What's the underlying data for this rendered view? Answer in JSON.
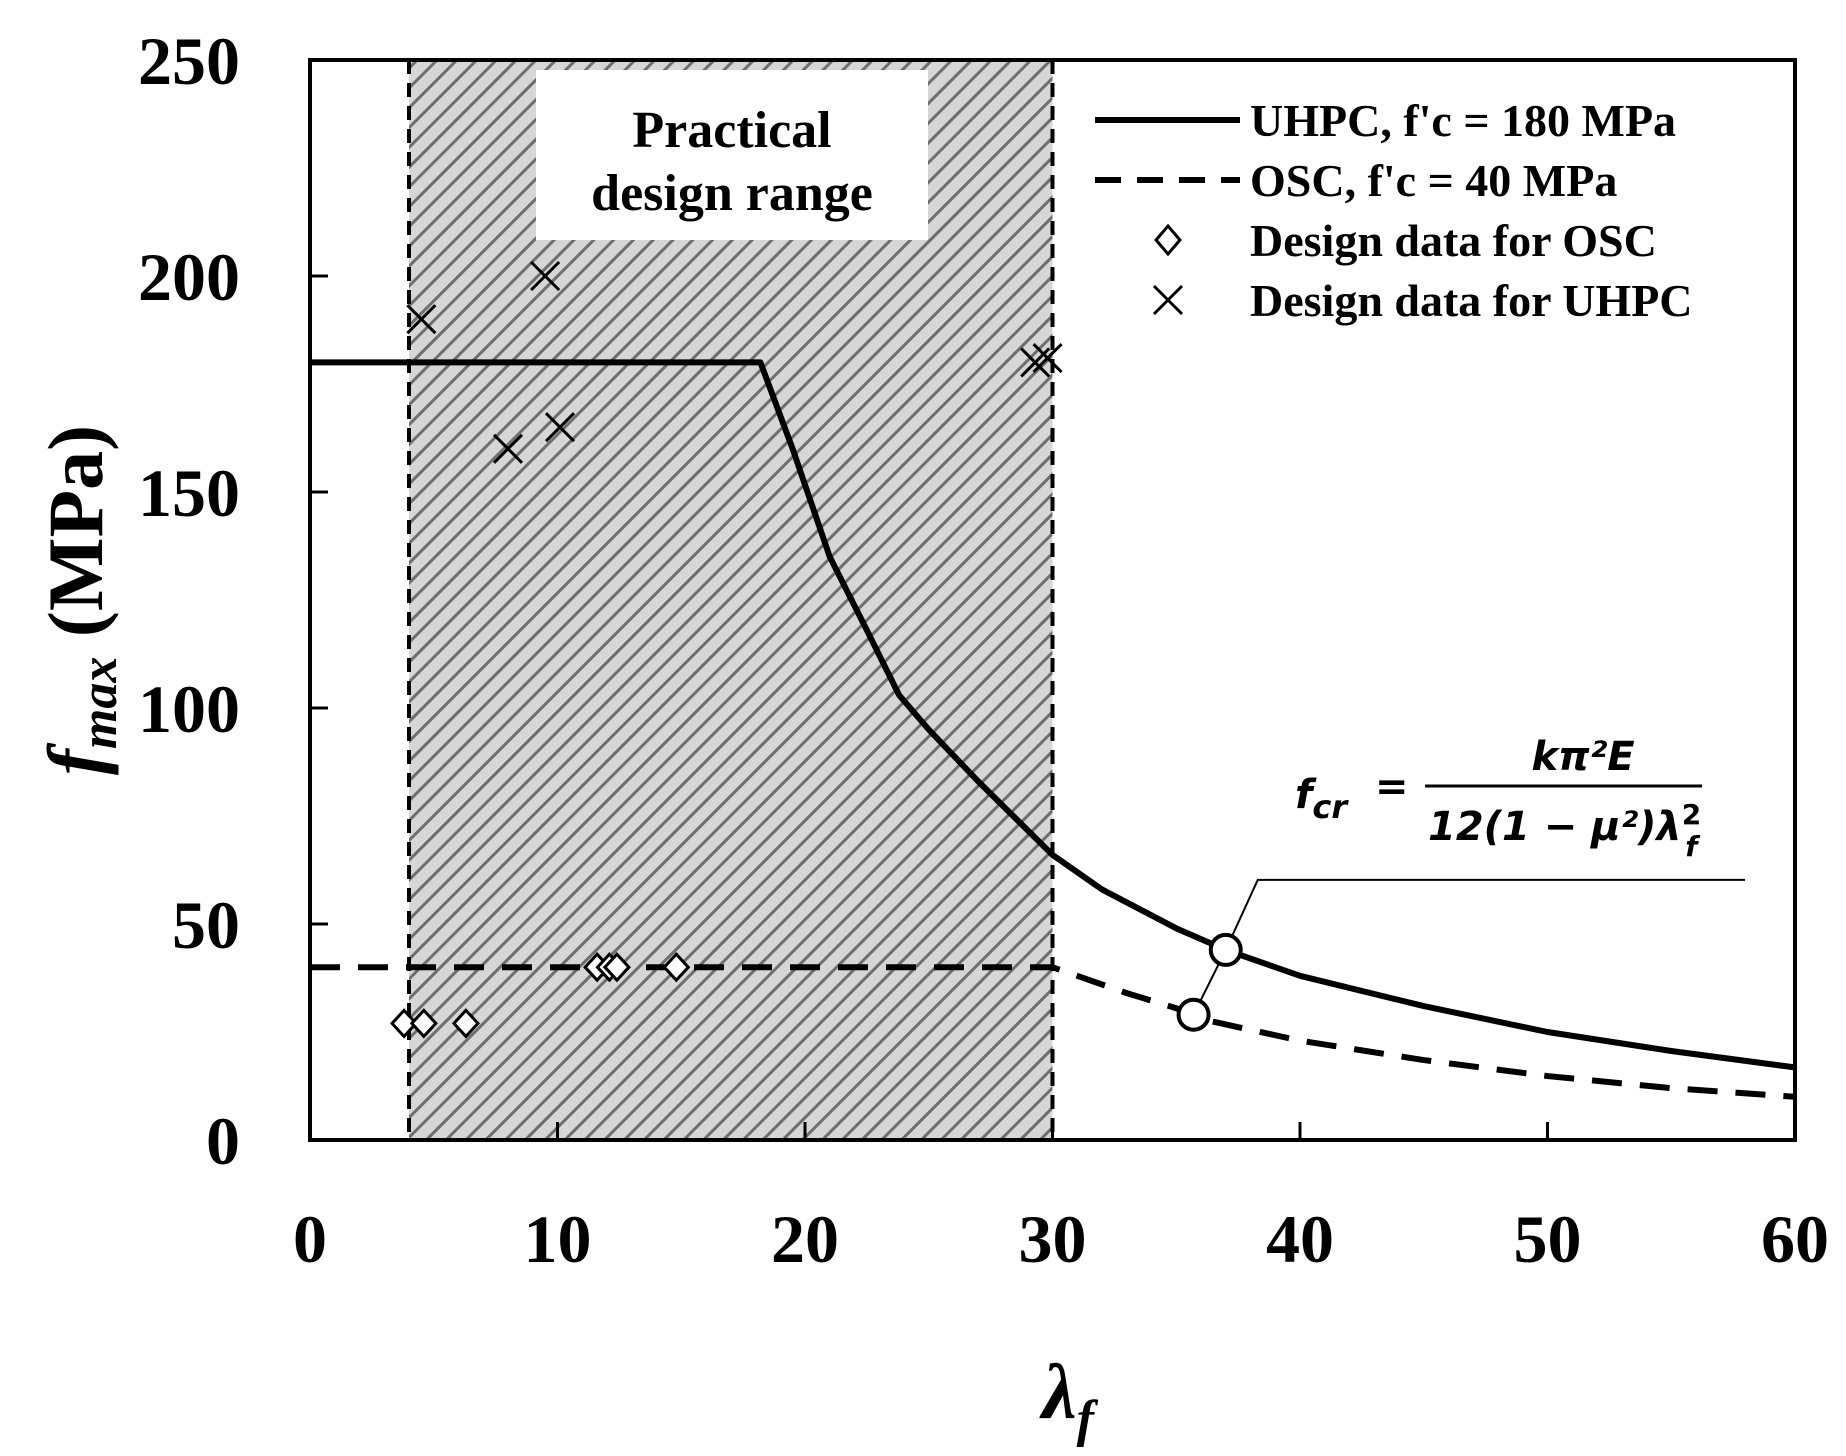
{
  "chart_data": {
    "type": "line",
    "xlabel": "λ",
    "xlabel_sub": "f",
    "ylabel": "f",
    "ylabel_sub": "max",
    "ylabel_unit": " (MPa)",
    "xlim": [
      0,
      60
    ],
    "ylim": [
      0,
      250
    ],
    "xticks": [
      "0",
      "10",
      "20",
      "30",
      "40",
      "50",
      "60"
    ],
    "yticks": [
      "0",
      "50",
      "100",
      "150",
      "200",
      "250"
    ],
    "grid": false,
    "legend_position": "top-right",
    "shaded_region": {
      "x_range": [
        4,
        30
      ],
      "label_line1": "Practical",
      "label_line2": "design range",
      "pattern": "diagonal hatch"
    },
    "series": [
      {
        "name": "UHPC, f'c = 180 MPa",
        "style": "solid",
        "color": "#000000",
        "x": [
          0,
          18.2,
          19.5,
          21,
          22.5,
          23.8,
          25,
          27,
          30,
          32,
          35,
          37,
          40,
          45,
          50,
          55,
          60
        ],
        "y": [
          180,
          180,
          160,
          135,
          118,
          103,
          95,
          83,
          66,
          58,
          49,
          44,
          38,
          31,
          25,
          20.6,
          16.8
        ]
      },
      {
        "name": "OSC, f'c = 40 MPa",
        "style": "dashed",
        "color": "#000000",
        "x": [
          0,
          30,
          31.5,
          33,
          35,
          36,
          40,
          45,
          50,
          55,
          60
        ],
        "y": [
          40,
          40,
          37,
          34,
          30.5,
          28,
          23,
          18.5,
          14.8,
          12,
          10
        ]
      },
      {
        "name": "Design data for OSC",
        "marker": "diamond",
        "x": [
          3.8,
          4.6,
          6.3,
          11.6,
          12.1,
          12.4,
          14.8
        ],
        "y": [
          27,
          27,
          27,
          40,
          40,
          40,
          40
        ]
      },
      {
        "name": "Design data for UHPC",
        "marker": "x",
        "x": [
          4.5,
          8,
          9.5,
          10.1,
          29.3,
          29.8
        ],
        "y": [
          190,
          160,
          200,
          165,
          180,
          181
        ]
      }
    ],
    "annotation": {
      "formula_lhs": "f",
      "formula_lhs_sub": "cr",
      "formula_num": "kπ²E",
      "formula_den": "12(1 − μ²)λ",
      "formula_den_sup": "2",
      "formula_den_sub": "f",
      "points": [
        {
          "x": 37,
          "y": 44
        },
        {
          "x": 35.7,
          "y": 29
        }
      ]
    }
  }
}
